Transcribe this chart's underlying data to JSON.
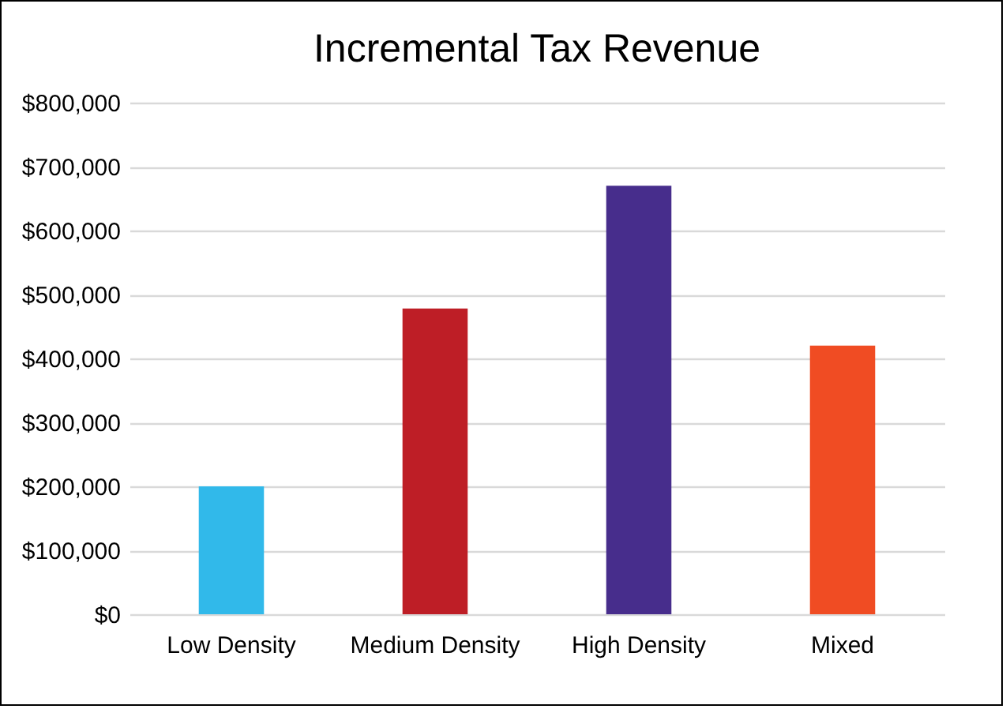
{
  "chart_data": {
    "type": "bar",
    "title": "Incremental Tax Revenue",
    "categories": [
      "Low Density",
      "Medium Density",
      "High Density",
      "Mixed"
    ],
    "values": [
      200000,
      478000,
      670000,
      420000
    ],
    "colors": [
      "#31b9ea",
      "#be1e26",
      "#472d8c",
      "#f04c23"
    ],
    "ylim": [
      0,
      800000
    ],
    "yticks": [
      {
        "value": 0,
        "label": "$0"
      },
      {
        "value": 100000,
        "label": "$100,000"
      },
      {
        "value": 200000,
        "label": "$200,000"
      },
      {
        "value": 300000,
        "label": "$300,000"
      },
      {
        "value": 400000,
        "label": "$400,000"
      },
      {
        "value": 500000,
        "label": "$500,000"
      },
      {
        "value": 600000,
        "label": "$600,000"
      },
      {
        "value": 700000,
        "label": "$700,000"
      },
      {
        "value": 800000,
        "label": "$800,000"
      }
    ],
    "grid": "y",
    "legend": false
  }
}
